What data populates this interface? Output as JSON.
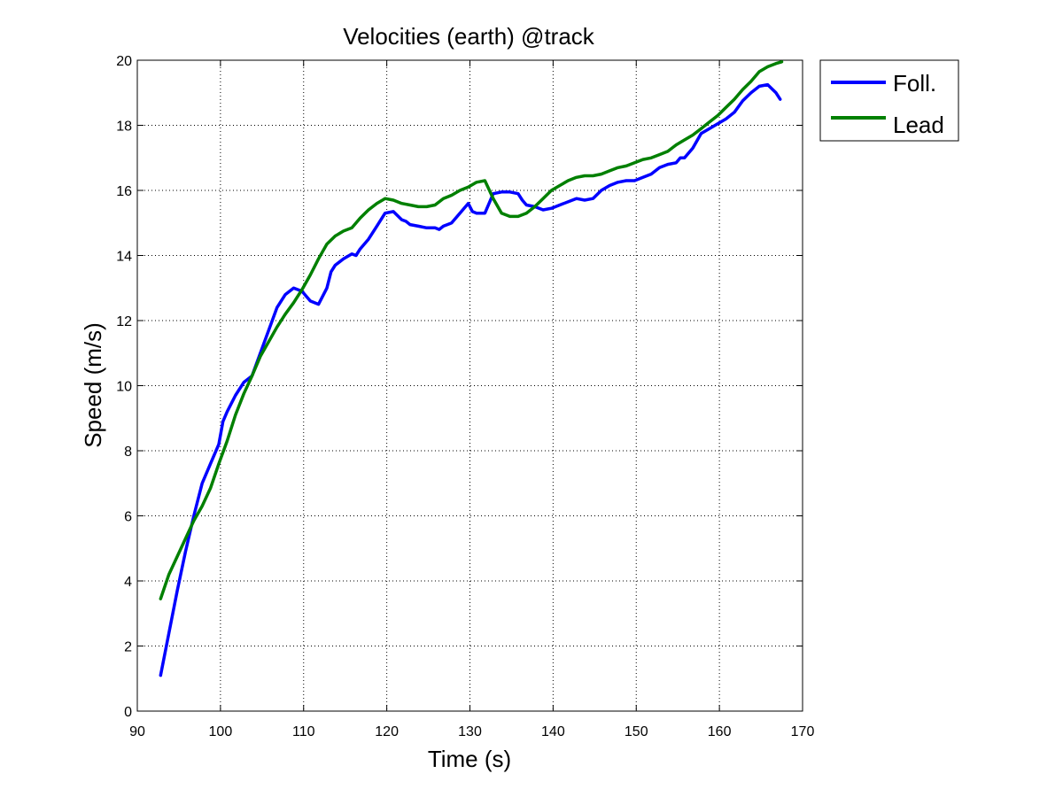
{
  "chart_data": {
    "type": "line",
    "title": "Velocities (earth) @track",
    "xlabel": "Time (s)",
    "ylabel": "Speed (m/s)",
    "xlim": [
      90,
      170
    ],
    "ylim": [
      0,
      20
    ],
    "xticks": [
      90,
      100,
      110,
      120,
      130,
      140,
      150,
      160,
      170
    ],
    "yticks": [
      0,
      2,
      4,
      6,
      8,
      10,
      12,
      14,
      16,
      18,
      20
    ],
    "grid": true,
    "legend_position": "outside-top-right",
    "series": [
      {
        "name": "Foll.",
        "color": "#0000ff",
        "x": [
          92.8,
          93.8,
          94.8,
          95.8,
          96.8,
          97.8,
          98.8,
          99.8,
          100.3,
          100.8,
          101.8,
          102.8,
          103.8,
          104.8,
          105.8,
          106.8,
          107.8,
          108.8,
          109.8,
          110.8,
          111.8,
          112.8,
          113.3,
          113.8,
          114.8,
          115.8,
          116.3,
          116.8,
          117.8,
          118.8,
          119.8,
          120.8,
          121.8,
          122.3,
          122.8,
          123.8,
          124.8,
          125.8,
          126.3,
          126.8,
          127.8,
          128.8,
          129.8,
          130.3,
          130.8,
          131.8,
          132.8,
          133.8,
          134.8,
          135.8,
          136.3,
          136.8,
          137.8,
          138.8,
          139.8,
          140.8,
          141.8,
          142.8,
          143.8,
          144.8,
          145.8,
          146.8,
          147.8,
          148.8,
          149.8,
          150.8,
          151.8,
          152.8,
          153.8,
          154.8,
          155.3,
          155.8,
          156.8,
          157.8,
          158.8,
          159.8,
          160.8,
          161.8,
          162.8,
          163.8,
          164.8,
          165.8,
          166.8,
          167.3
        ],
        "y": [
          1.1,
          2.4,
          3.7,
          4.9,
          6.0,
          7.0,
          7.6,
          8.2,
          8.9,
          9.2,
          9.7,
          10.1,
          10.3,
          11.0,
          11.7,
          12.4,
          12.8,
          13.0,
          12.9,
          12.6,
          12.5,
          13.0,
          13.5,
          13.7,
          13.9,
          14.05,
          14.0,
          14.2,
          14.5,
          14.9,
          15.3,
          15.35,
          15.1,
          15.05,
          14.95,
          14.9,
          14.85,
          14.85,
          14.8,
          14.9,
          15.0,
          15.3,
          15.6,
          15.35,
          15.3,
          15.3,
          15.9,
          15.95,
          15.95,
          15.9,
          15.7,
          15.55,
          15.5,
          15.4,
          15.45,
          15.55,
          15.65,
          15.75,
          15.7,
          15.75,
          16.0,
          16.15,
          16.25,
          16.3,
          16.3,
          16.4,
          16.5,
          16.7,
          16.8,
          16.85,
          17.0,
          17.0,
          17.3,
          17.75,
          17.9,
          18.05,
          18.2,
          18.4,
          18.75,
          19.0,
          19.2,
          19.25,
          19.0,
          18.8
        ]
      },
      {
        "name": "Lead",
        "color": "#008000",
        "x": [
          92.8,
          93.8,
          94.8,
          95.8,
          96.8,
          97.8,
          98.8,
          99.8,
          100.8,
          101.8,
          102.8,
          103.8,
          104.8,
          105.8,
          106.8,
          107.8,
          108.8,
          109.8,
          110.8,
          111.8,
          112.8,
          113.8,
          114.8,
          115.8,
          116.8,
          117.8,
          118.8,
          119.8,
          120.8,
          121.8,
          122.8,
          123.8,
          124.8,
          125.8,
          126.8,
          127.8,
          128.8,
          129.8,
          130.8,
          131.8,
          132.8,
          133.8,
          134.8,
          135.8,
          136.8,
          137.8,
          138.8,
          139.8,
          140.8,
          141.8,
          142.8,
          143.8,
          144.8,
          145.8,
          146.8,
          147.8,
          148.8,
          149.8,
          150.8,
          151.8,
          152.8,
          153.8,
          154.8,
          155.8,
          156.8,
          157.8,
          158.8,
          159.8,
          160.8,
          161.8,
          162.8,
          163.8,
          164.8,
          165.8,
          166.8,
          167.5
        ],
        "y": [
          3.45,
          4.2,
          4.75,
          5.3,
          5.85,
          6.3,
          6.85,
          7.6,
          8.3,
          9.1,
          9.75,
          10.3,
          10.9,
          11.35,
          11.8,
          12.2,
          12.55,
          12.95,
          13.4,
          13.9,
          14.35,
          14.6,
          14.75,
          14.85,
          15.15,
          15.4,
          15.6,
          15.75,
          15.7,
          15.6,
          15.55,
          15.5,
          15.5,
          15.55,
          15.75,
          15.85,
          16.0,
          16.1,
          16.25,
          16.3,
          15.75,
          15.3,
          15.2,
          15.2,
          15.3,
          15.5,
          15.75,
          16.0,
          16.15,
          16.3,
          16.4,
          16.45,
          16.45,
          16.5,
          16.6,
          16.7,
          16.75,
          16.85,
          16.95,
          17.0,
          17.1,
          17.2,
          17.4,
          17.55,
          17.7,
          17.9,
          18.1,
          18.3,
          18.55,
          18.8,
          19.1,
          19.35,
          19.65,
          19.8,
          19.9,
          19.95
        ]
      }
    ]
  }
}
